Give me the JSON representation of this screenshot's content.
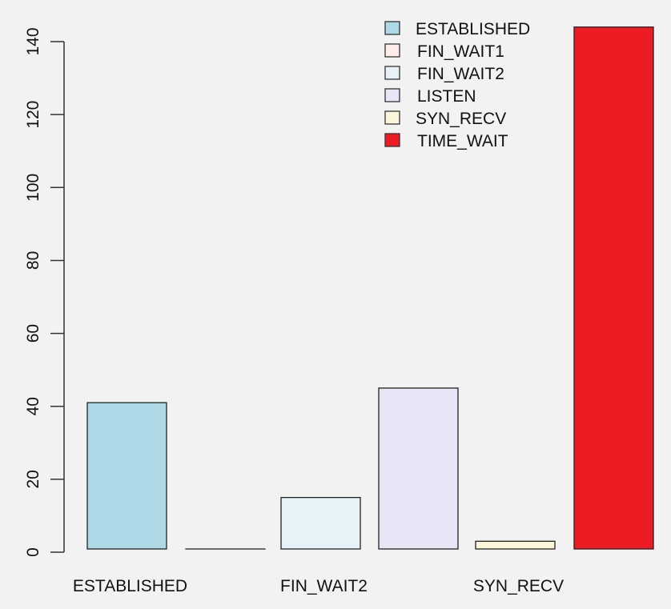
{
  "chart_data": {
    "type": "bar",
    "title": "",
    "xlabel": "",
    "ylabel": "",
    "categories": [
      "ESTABLISHED",
      "FIN_WAIT1",
      "FIN_WAIT2",
      "LISTEN",
      "SYN_RECV",
      "TIME_WAIT"
    ],
    "values": [
      41,
      0,
      15,
      45,
      3,
      144
    ],
    "colors": [
      "#add8e6",
      "#fdece8",
      "#e6f2f7",
      "#e6e6f6",
      "#fbf6da",
      "#ed1c24"
    ],
    "visible_x_tick_labels": [
      "ESTABLISHED",
      "FIN_WAIT2",
      "SYN_RECV"
    ],
    "y_ticks": [
      0,
      20,
      40,
      60,
      80,
      100,
      120,
      140
    ],
    "ylim": [
      0,
      144
    ],
    "grid": false,
    "legend": {
      "position": "top-right",
      "entries": [
        {
          "label": "ESTABLISHED",
          "color": "#add8e6"
        },
        {
          "label": "FIN_WAIT1",
          "color": "#fdece8"
        },
        {
          "label": "FIN_WAIT2",
          "color": "#e6f2f7"
        },
        {
          "label": "LISTEN",
          "color": "#e6e6f6"
        },
        {
          "label": "SYN_RECV",
          "color": "#fbf6da"
        },
        {
          "label": "TIME_WAIT",
          "color": "#ed1c24"
        }
      ]
    }
  }
}
